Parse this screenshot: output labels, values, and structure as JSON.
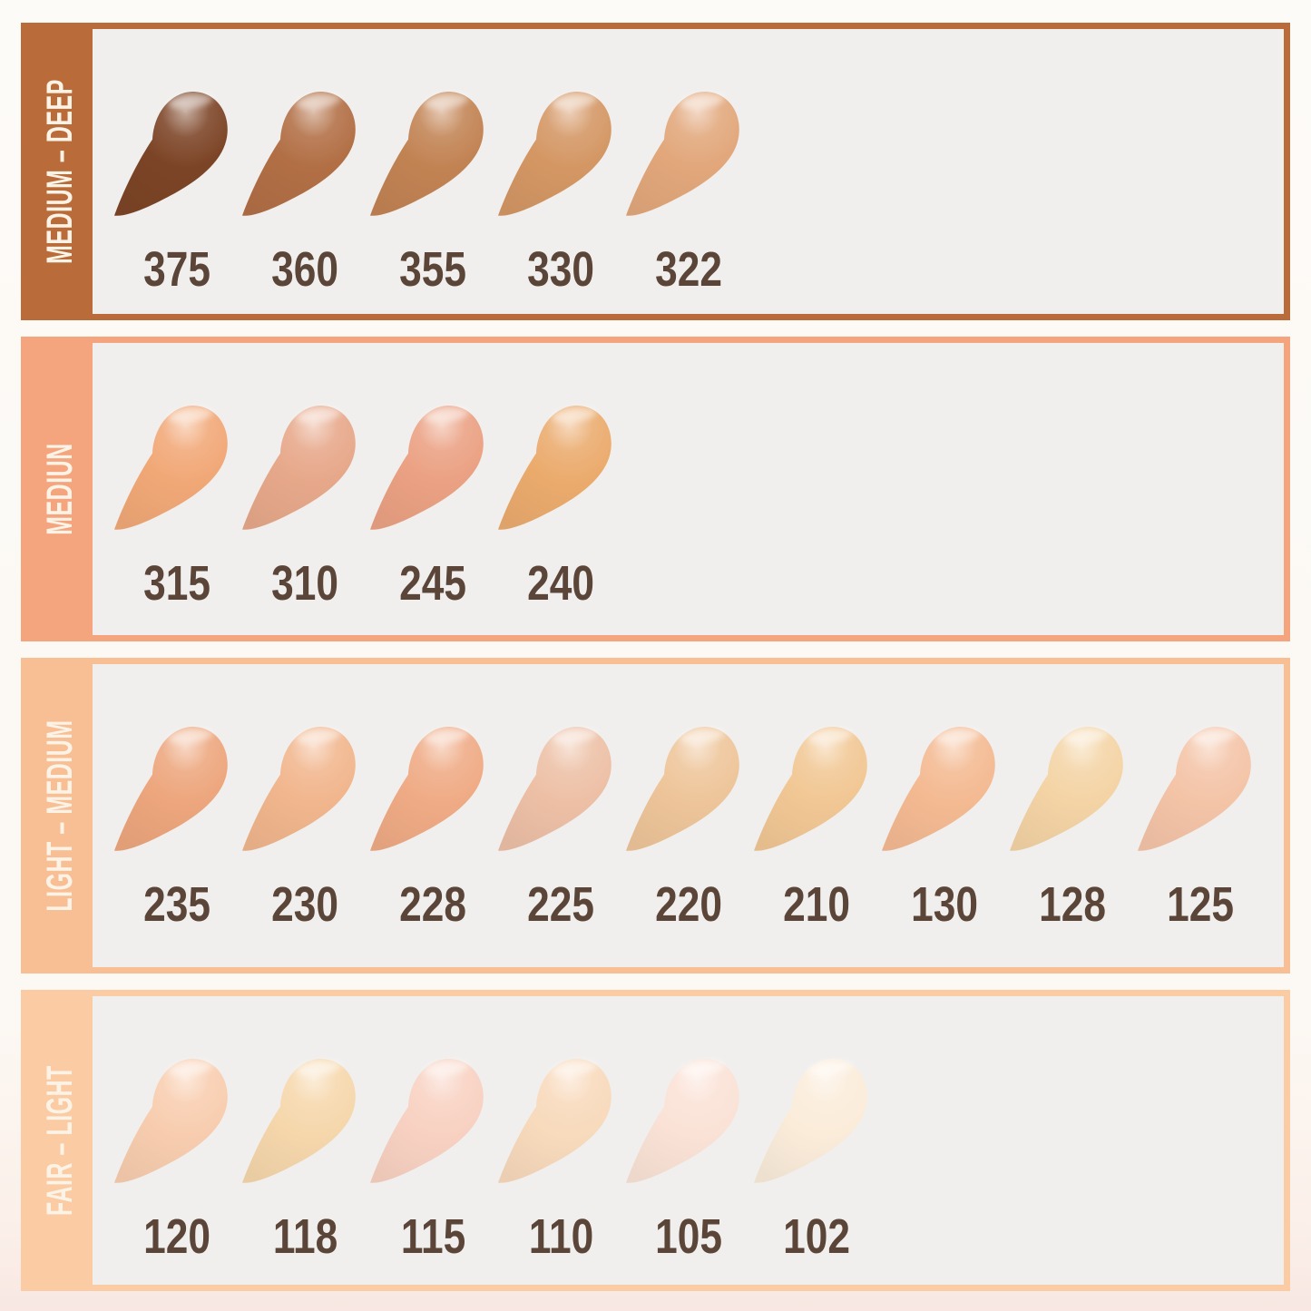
{
  "page": {
    "content_background": "#f0efed",
    "number_color": "#5A4538",
    "label_color": "#FCF3E7"
  },
  "chart_data": {
    "type": "table",
    "title": "",
    "legend": "foundation shade swatches grouped by depth category",
    "rows": [
      {
        "category": "MEDIUM – DEEP",
        "band_color": "#B96C3A",
        "shades": [
          {
            "code": "375",
            "color": "#7C4426"
          },
          {
            "code": "360",
            "color": "#B26F45"
          },
          {
            "code": "355",
            "color": "#C28353"
          },
          {
            "code": "330",
            "color": "#D49764"
          },
          {
            "code": "322",
            "color": "#E2A77B"
          }
        ]
      },
      {
        "category": "MEDIUN",
        "band_color": "#F4A57D",
        "shades": [
          {
            "code": "315",
            "color": "#F1A877"
          },
          {
            "code": "310",
            "color": "#E7A88A"
          },
          {
            "code": "245",
            "color": "#EBA183"
          },
          {
            "code": "240",
            "color": "#EBAB6D"
          }
        ]
      },
      {
        "category": "LIGHT – MEDIUM",
        "band_color": "#F8BE94",
        "shades": [
          {
            "code": "235",
            "color": "#EDA67D"
          },
          {
            "code": "230",
            "color": "#F1B68D"
          },
          {
            "code": "228",
            "color": "#EFAB85"
          },
          {
            "code": "225",
            "color": "#EDC0A6"
          },
          {
            "code": "220",
            "color": "#EEC59A"
          },
          {
            "code": "210",
            "color": "#F1C794"
          },
          {
            "code": "130",
            "color": "#F4BA92"
          },
          {
            "code": "128",
            "color": "#F4D4A5"
          },
          {
            "code": "125",
            "color": "#F4C4A7"
          }
        ]
      },
      {
        "category": "FAIR – LIGHT",
        "band_color": "#FBCBA3",
        "shades": [
          {
            "code": "120",
            "color": "#F8CDAF"
          },
          {
            "code": "118",
            "color": "#F6D7AC"
          },
          {
            "code": "115",
            "color": "#F8D1C2"
          },
          {
            "code": "110",
            "color": "#F8DABC"
          },
          {
            "code": "105",
            "color": "#FAE2D6"
          },
          {
            "code": "102",
            "color": "#FBECDA"
          }
        ]
      }
    ]
  }
}
